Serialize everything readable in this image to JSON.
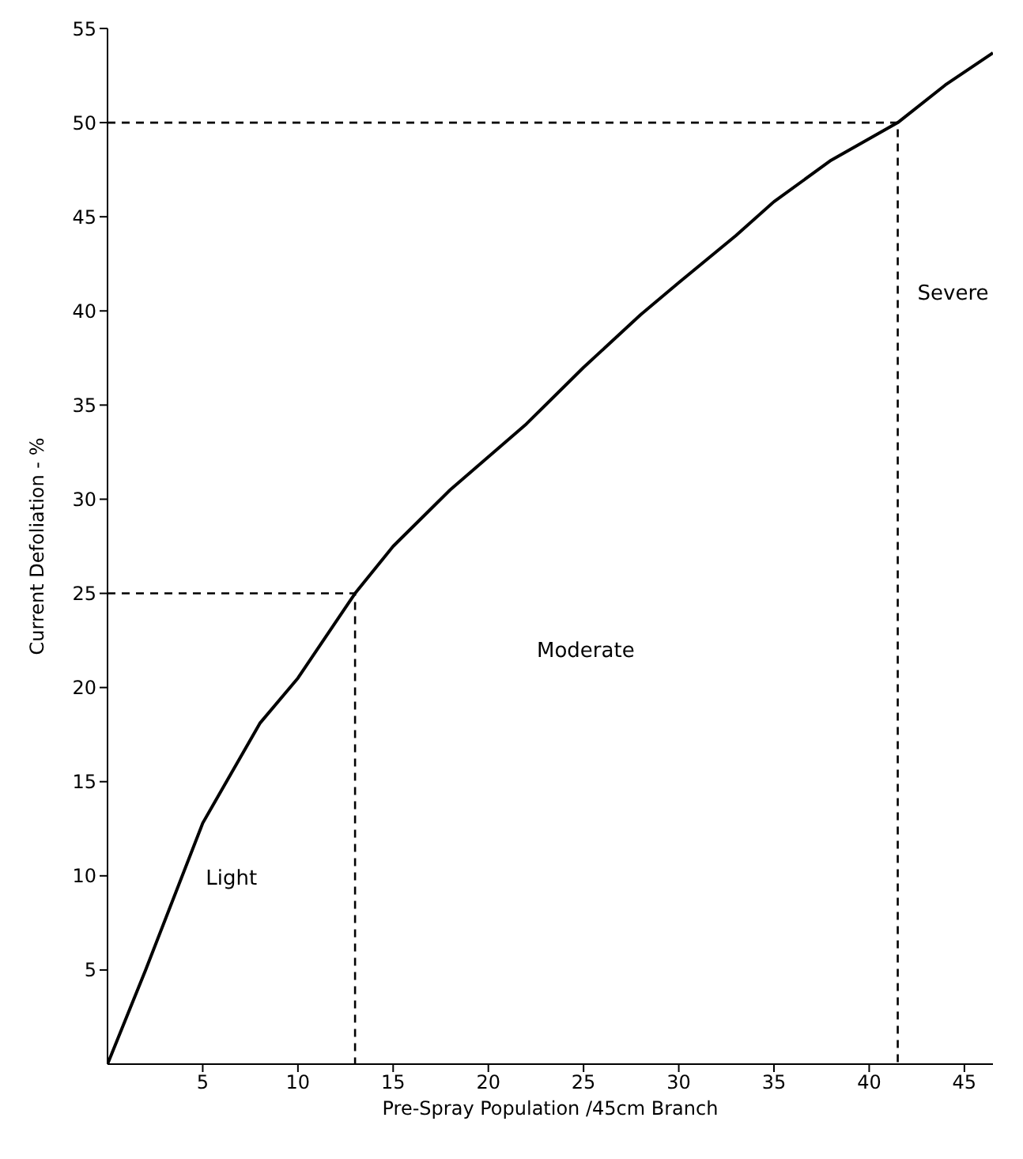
{
  "chart_data": {
    "type": "line",
    "xlabel": "Pre-Spray  Population /45cm Branch",
    "ylabel": "Current  Defoliation - %",
    "xlim": [
      0,
      46.5
    ],
    "ylim": [
      0,
      55
    ],
    "xticks": [
      5,
      10,
      15,
      20,
      25,
      30,
      35,
      40,
      45
    ],
    "yticks": [
      5,
      10,
      15,
      20,
      25,
      30,
      35,
      40,
      45,
      50,
      55
    ],
    "series": [
      {
        "color": "#000000",
        "line_style": "solid",
        "x": [
          0,
          2,
          5,
          8,
          10,
          13,
          15,
          18,
          22,
          25,
          28,
          30,
          33,
          35,
          38,
          41.5,
          44,
          46.5
        ],
        "values": [
          0,
          5,
          12.8,
          18.1,
          20.5,
          25,
          27.5,
          30.5,
          34,
          37,
          39.8,
          41.5,
          44,
          45.8,
          48,
          50,
          52,
          53.7
        ]
      },
      {
        "color": "#000000",
        "line_style": "dashed",
        "x": [
          0,
          13,
          13
        ],
        "values": [
          25,
          25,
          0
        ]
      },
      {
        "color": "#000000",
        "line_style": "dashed",
        "x": [
          0,
          41.5,
          41.5
        ],
        "values": [
          50,
          50,
          0
        ]
      }
    ],
    "annotations": [
      "Light",
      "Moderate",
      "Severe"
    ]
  }
}
